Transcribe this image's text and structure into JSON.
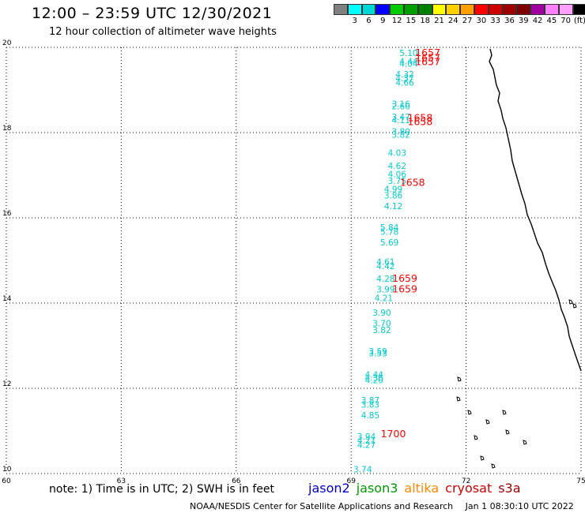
{
  "header": {
    "title": "12:00 – 23:59 UTC 12/30/2021",
    "subtitle": "12 hour collection of altimeter wave heights"
  },
  "scale": {
    "unit": "(ft)",
    "colors": [
      "#808080",
      "#00ffff",
      "#00d8d8",
      "#0000ff",
      "#00cc00",
      "#00a000",
      "#008000",
      "#ffff00",
      "#ffd000",
      "#ffa000",
      "#ff0000",
      "#d00000",
      "#a00000",
      "#800000",
      "#a000a0",
      "#ff80ff",
      "#ffa0ff",
      "#000000"
    ],
    "labels": [
      "3",
      "6",
      "9",
      "12",
      "15",
      "18",
      "21",
      "24",
      "27",
      "30",
      "33",
      "36",
      "39",
      "42",
      "45",
      "70"
    ]
  },
  "axes": {
    "x_ticks": [
      "60",
      "63",
      "66",
      "69",
      "72",
      "75"
    ],
    "y_ticks": [
      "10",
      "12",
      "14",
      "16",
      "18",
      "20"
    ]
  },
  "chart_data": {
    "type": "scatter",
    "xlim": [
      60,
      75
    ],
    "ylim": [
      10,
      20
    ],
    "grid": true,
    "wave_heights": [
      {
        "x": 70.5,
        "y": 19.8,
        "v": "5.10"
      },
      {
        "x": 70.5,
        "y": 19.6,
        "v": "4.44"
      },
      {
        "x": 70.5,
        "y": 19.55,
        "v": "4.04"
      },
      {
        "x": 70.4,
        "y": 19.3,
        "v": "4.32"
      },
      {
        "x": 70.4,
        "y": 19.2,
        "v": "4.37"
      },
      {
        "x": 70.4,
        "y": 19.1,
        "v": "4.66"
      },
      {
        "x": 70.3,
        "y": 18.6,
        "v": "3.16"
      },
      {
        "x": 70.3,
        "y": 18.55,
        "v": "2.60"
      },
      {
        "x": 70.3,
        "y": 18.3,
        "v": "3.47"
      },
      {
        "x": 70.3,
        "y": 18.22,
        "v": "4.11"
      },
      {
        "x": 70.3,
        "y": 17.95,
        "v": "3.80"
      },
      {
        "x": 70.3,
        "y": 17.88,
        "v": "3.82"
      },
      {
        "x": 70.2,
        "y": 17.45,
        "v": "4.03"
      },
      {
        "x": 70.2,
        "y": 17.15,
        "v": "4.62"
      },
      {
        "x": 70.2,
        "y": 16.95,
        "v": "4.06"
      },
      {
        "x": 70.2,
        "y": 16.8,
        "v": "3.75"
      },
      {
        "x": 70.1,
        "y": 16.6,
        "v": "4.99"
      },
      {
        "x": 70.1,
        "y": 16.45,
        "v": "3.86"
      },
      {
        "x": 70.1,
        "y": 16.2,
        "v": "4.12"
      },
      {
        "x": 70.0,
        "y": 15.7,
        "v": "5.84"
      },
      {
        "x": 70.0,
        "y": 15.6,
        "v": "5.78"
      },
      {
        "x": 70.0,
        "y": 15.35,
        "v": "5.69"
      },
      {
        "x": 69.9,
        "y": 14.9,
        "v": "4.61"
      },
      {
        "x": 69.9,
        "y": 14.8,
        "v": "4.42"
      },
      {
        "x": 69.9,
        "y": 14.5,
        "v": "4.28"
      },
      {
        "x": 69.9,
        "y": 14.25,
        "v": "3.99"
      },
      {
        "x": 69.85,
        "y": 14.05,
        "v": "4.21"
      },
      {
        "x": 69.8,
        "y": 13.7,
        "v": "3.90"
      },
      {
        "x": 69.8,
        "y": 13.45,
        "v": "3.70"
      },
      {
        "x": 69.8,
        "y": 13.3,
        "v": "3.82"
      },
      {
        "x": 69.7,
        "y": 12.8,
        "v": "3.59"
      },
      {
        "x": 69.7,
        "y": 12.75,
        "v": "3.53"
      },
      {
        "x": 69.6,
        "y": 12.25,
        "v": "4.44"
      },
      {
        "x": 69.6,
        "y": 12.18,
        "v": "4.36"
      },
      {
        "x": 69.6,
        "y": 12.12,
        "v": "4.20"
      },
      {
        "x": 69.5,
        "y": 11.65,
        "v": "3.87"
      },
      {
        "x": 69.5,
        "y": 11.55,
        "v": "3.83"
      },
      {
        "x": 69.5,
        "y": 11.3,
        "v": "4.85"
      },
      {
        "x": 69.4,
        "y": 10.8,
        "v": "3.94"
      },
      {
        "x": 69.4,
        "y": 10.7,
        "v": "4.21"
      },
      {
        "x": 69.4,
        "y": 10.6,
        "v": "4.27"
      },
      {
        "x": 69.3,
        "y": 10.03,
        "v": "3.74"
      }
    ],
    "time_stamps": [
      {
        "x": 71.0,
        "y": 19.8,
        "v": "1657"
      },
      {
        "x": 71.0,
        "y": 19.68,
        "v": "1657"
      },
      {
        "x": 71.0,
        "y": 19.58,
        "v": "1657"
      },
      {
        "x": 70.8,
        "y": 18.27,
        "v": "1658"
      },
      {
        "x": 70.8,
        "y": 18.18,
        "v": "1658"
      },
      {
        "x": 70.6,
        "y": 16.75,
        "v": "1658"
      },
      {
        "x": 70.4,
        "y": 14.5,
        "v": "1659"
      },
      {
        "x": 70.4,
        "y": 14.25,
        "v": "1659"
      },
      {
        "x": 70.1,
        "y": 10.85,
        "v": "1700"
      }
    ]
  },
  "note": "note: 1) Time is in UTC; 2) SWH is in feet",
  "satellites": [
    {
      "name": "jason2",
      "color": "#0000cc"
    },
    {
      "name": "jason3",
      "color": "#009900"
    },
    {
      "name": "altika",
      "color": "#ff8800"
    },
    {
      "name": "cryosat",
      "color": "#cc0000"
    },
    {
      "name": "s3a",
      "color": "#990000"
    }
  ],
  "credit": {
    "org": "NOAA/NESDIS Center for Satellite Applications and Research",
    "timestamp": "Jan  1 08:30:10 UTC 2022"
  }
}
